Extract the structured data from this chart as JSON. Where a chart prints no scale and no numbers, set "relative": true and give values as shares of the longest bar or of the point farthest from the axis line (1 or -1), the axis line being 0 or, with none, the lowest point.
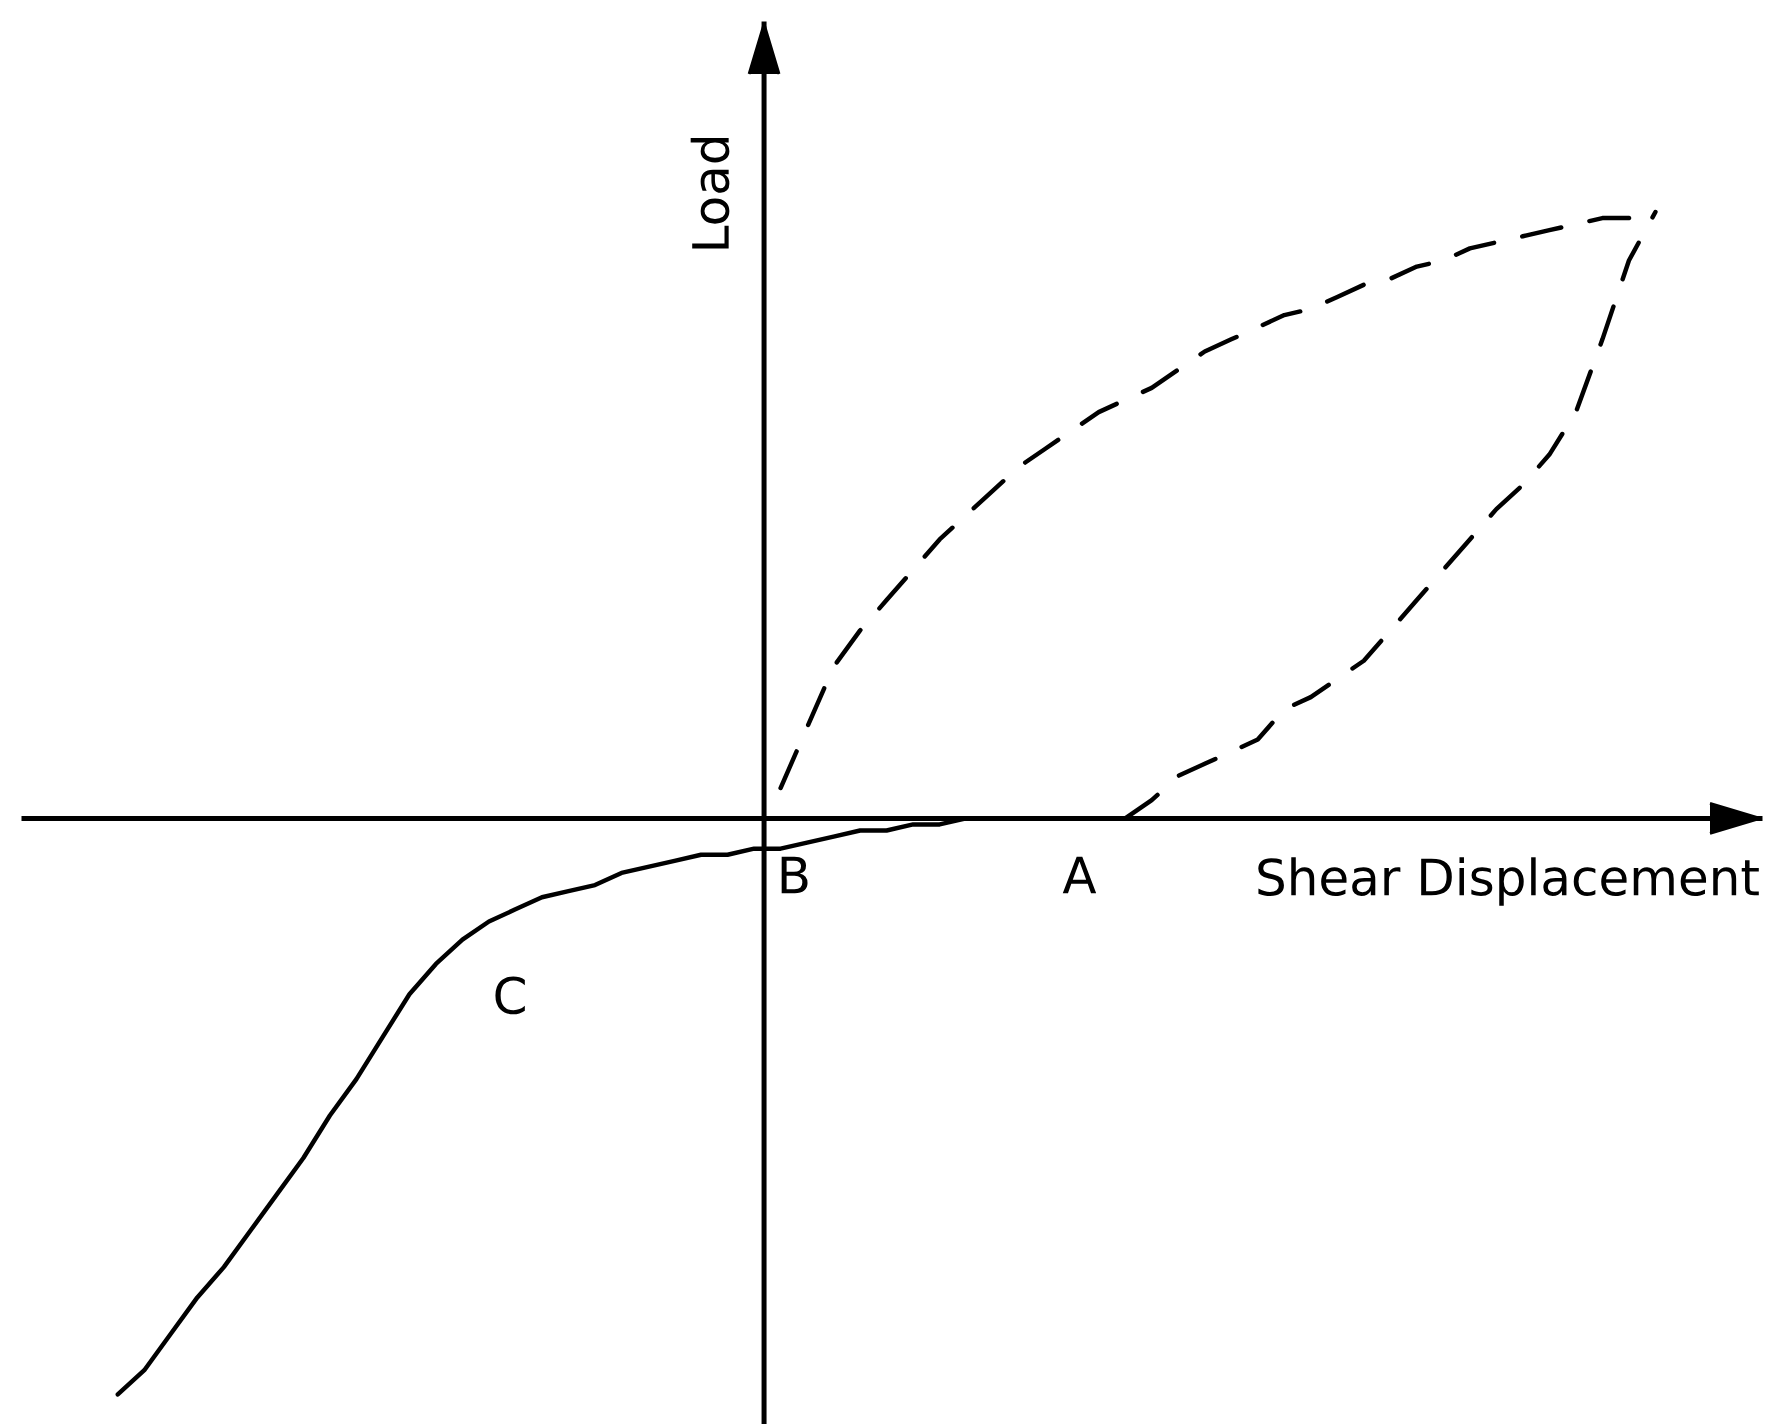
{
  "chart_data": {
    "type": "line",
    "xlabel": "Shear Displacement",
    "ylabel": "Load",
    "relative": true,
    "marker": "none",
    "categories": [
      null,
      null,
      null,
      null,
      null,
      null,
      null,
      null,
      null,
      null,
      null,
      null,
      null,
      null,
      null,
      null,
      null,
      null,
      null,
      null,
      null,
      null,
      null,
      null,
      null,
      null,
      null,
      null,
      null,
      null,
      null,
      null,
      null,
      null,
      null,
      null,
      null,
      null,
      null,
      null,
      null,
      null,
      null,
      null,
      null,
      null,
      null,
      null,
      null,
      null,
      null,
      null,
      null,
      null,
      null,
      null,
      null,
      null,
      null
    ],
    "series": [
      {
        "color": "#000000",
        "line_style": "dashed",
        "values": [
          null,
          null,
          null,
          null,
          null,
          null,
          null,
          null,
          null,
          null,
          null,
          null,
          null,
          null,
          null,
          null,
          null,
          null,
          null,
          null,
          null,
          null,
          null,
          null,
          null,
          0.05,
          0.15,
          0.25,
          0.31,
          0.36,
          0.41,
          0.46,
          0.5,
          0.54,
          0.58,
          0.61,
          0.64,
          0.67,
          0.69,
          0.71,
          0.74,
          0.77,
          0.79,
          0.81,
          0.83,
          0.84,
          0.86,
          0.88,
          0.89,
          0.91,
          0.92,
          0.94,
          0.95,
          0.96,
          0.97,
          0.98,
          0.99,
          0.99,
          1.0
        ]
      },
      {
        "color": "#000000",
        "line_style": "dashed",
        "values": [
          null,
          null,
          null,
          null,
          null,
          null,
          null,
          null,
          null,
          null,
          null,
          null,
          null,
          null,
          null,
          null,
          null,
          null,
          null,
          null,
          null,
          null,
          null,
          null,
          null,
          null,
          null,
          null,
          null,
          null,
          null,
          null,
          null,
          null,
          null,
          null,
          null,
          null,
          0.0,
          0.03,
          0.07,
          0.09,
          0.11,
          0.13,
          0.18,
          0.2,
          0.23,
          0.26,
          0.31,
          0.36,
          0.41,
          0.46,
          0.51,
          0.55,
          0.6,
          0.67,
          0.79,
          0.92,
          1.0
        ]
      },
      {
        "color": "#000000",
        "line_style": "solid",
        "values": [
          -0.95,
          -0.91,
          -0.85,
          -0.79,
          -0.74,
          -0.68,
          -0.62,
          -0.56,
          -0.49,
          -0.43,
          -0.36,
          -0.29,
          -0.24,
          -0.2,
          -0.17,
          -0.15,
          -0.13,
          -0.12,
          -0.11,
          -0.09,
          -0.08,
          -0.07,
          -0.06,
          -0.06,
          -0.05,
          -0.05,
          -0.04,
          -0.03,
          -0.02,
          -0.02,
          -0.01,
          -0.01,
          0.0,
          0.0,
          0.0,
          0.0,
          0.0,
          0.0,
          null,
          null,
          null,
          null,
          null,
          null,
          null,
          null,
          null,
          null,
          null,
          null,
          null,
          null,
          null,
          null,
          null,
          null,
          null,
          null,
          null
        ]
      }
    ],
    "annotations": [
      "A",
      "B",
      "C"
    ]
  }
}
